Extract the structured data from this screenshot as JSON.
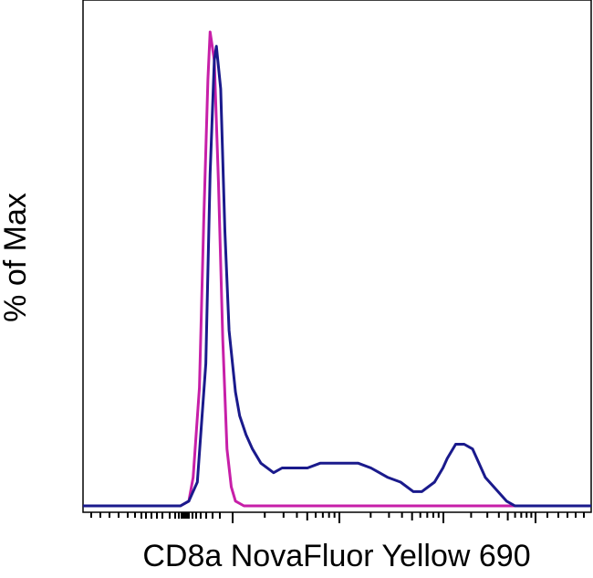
{
  "chart_data": {
    "type": "line",
    "title": "",
    "xlabel": "CD8a NovaFluor Yellow 690",
    "ylabel": "% of Max",
    "x_scale": "biexponential",
    "x_tick_labels": [],
    "y_tick_labels": [],
    "xlim": [
      -0.2,
      1.0
    ],
    "ylim": [
      0,
      100
    ],
    "grid": false,
    "legend": "none",
    "series": [
      {
        "color": "#c71fa8",
        "x": [
          -0.2,
          0.03,
          0.05,
          0.06,
          0.075,
          0.085,
          0.095,
          0.1,
          0.11,
          0.12,
          0.13,
          0.14,
          0.15,
          0.16,
          0.18,
          0.2,
          1.0
        ],
        "y": [
          0,
          0,
          1,
          6,
          25,
          60,
          90,
          100,
          94,
          68,
          35,
          12,
          4,
          1,
          0,
          0,
          0
        ]
      },
      {
        "color": "#1a1a8c",
        "x": [
          -0.2,
          0.03,
          0.05,
          0.07,
          0.09,
          0.1,
          0.11,
          0.115,
          0.125,
          0.135,
          0.145,
          0.16,
          0.17,
          0.185,
          0.2,
          0.22,
          0.25,
          0.27,
          0.3,
          0.33,
          0.36,
          0.38,
          0.4,
          0.45,
          0.48,
          0.5,
          0.52,
          0.55,
          0.58,
          0.6,
          0.63,
          0.65,
          0.66,
          0.68,
          0.7,
          0.72,
          0.73,
          0.75,
          0.78,
          0.8,
          0.82,
          0.84,
          0.86,
          1.0
        ],
        "y": [
          0,
          0,
          1,
          5,
          30,
          70,
          94,
          97,
          88,
          58,
          37,
          24,
          19,
          15,
          12,
          9,
          7,
          8,
          8,
          8,
          9,
          9,
          9,
          9,
          8,
          7,
          6,
          5,
          3,
          3,
          5,
          8,
          10,
          13,
          13,
          12,
          10,
          6,
          3,
          1,
          0,
          0,
          0,
          0
        ]
      }
    ]
  }
}
